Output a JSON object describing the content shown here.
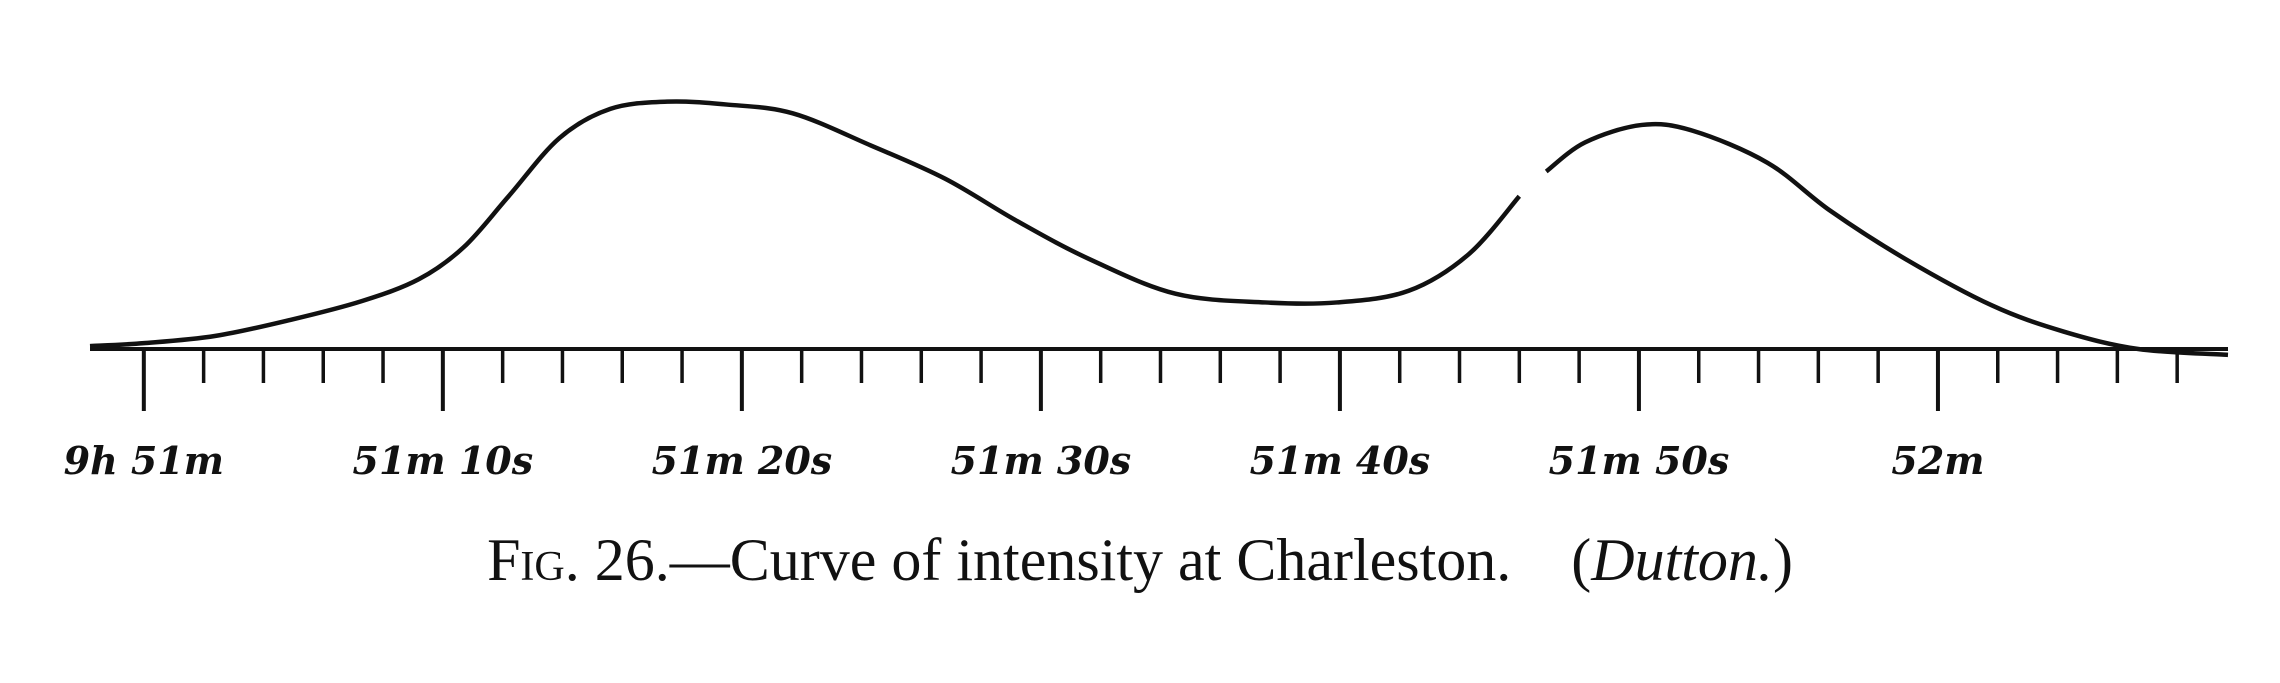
{
  "chart_data": {
    "type": "line",
    "x": [
      -1.8,
      0,
      2.4,
      4.9,
      7.3,
      9.2,
      10.7,
      12.2,
      13.9,
      15.6,
      17.5,
      19.5,
      21.7,
      24.3,
      26.8,
      29.2,
      31.6,
      34.5,
      37.5,
      39.9,
      42.3,
      44.3,
      46.0,
      null,
      46.9,
      48.2,
      50.1,
      51.8,
      54.3,
      56.4,
      58.9,
      61.8,
      64.2,
      66.7,
      69.7
    ],
    "series": [
      {
        "color": "#111111",
        "values": [
          1,
          2,
          4.5,
          10,
          16.5,
          24,
          35,
          52.5,
          72.5,
          82.5,
          85,
          84,
          81,
          70,
          58.5,
          44,
          31,
          19,
          16,
          16,
          20,
          32.5,
          52.5,
          null,
          61,
          71,
          77,
          75,
          64,
          47.5,
          31,
          15,
          6,
          0,
          -2
        ]
      }
    ],
    "xlim": [
      -1.8,
      69.7
    ],
    "ylim": [
      0,
      100
    ],
    "xticks": [
      {
        "value": 0,
        "label": "9h 51m"
      },
      {
        "value": 10,
        "label": "51m 10s"
      },
      {
        "value": 20,
        "label": "51m 20s"
      },
      {
        "value": 30,
        "label": "51m 30s"
      },
      {
        "value": 40,
        "label": "51m 40s"
      },
      {
        "value": 50,
        "label": "51m 50s"
      },
      {
        "value": 60,
        "label": "52m"
      }
    ],
    "minor_xticks": [
      2,
      4,
      6,
      8,
      12,
      14,
      16,
      18,
      22,
      24,
      26,
      28,
      32,
      34,
      36,
      38,
      42,
      44,
      46,
      48,
      52,
      54,
      56,
      58,
      62,
      64,
      66,
      68
    ],
    "caption": [
      "Fig. 26.",
      "—Curve of intensity at Charleston.",
      "(",
      "Dutton.",
      ")"
    ]
  }
}
